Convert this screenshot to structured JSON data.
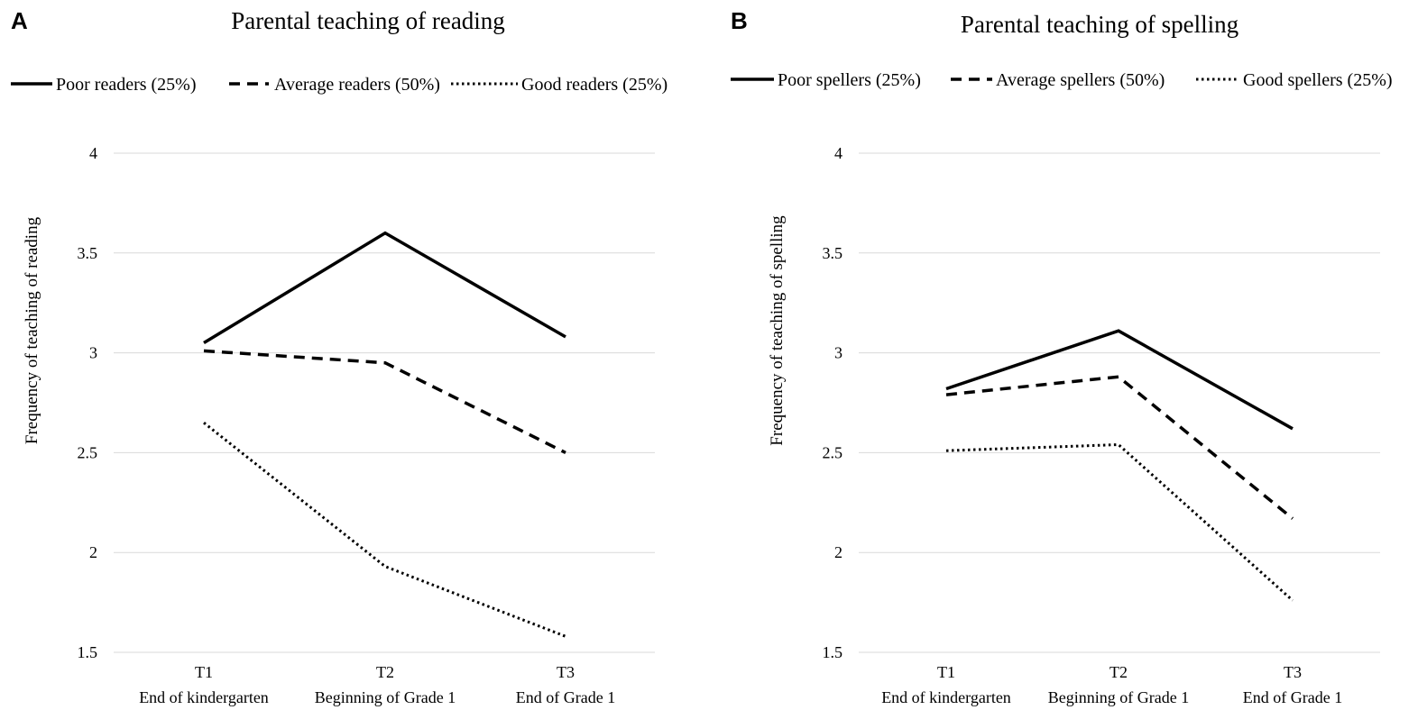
{
  "chart_data": [
    {
      "panel": "A",
      "type": "line",
      "title": "Parental teaching of reading",
      "ylabel": "Frequency of teaching of reading",
      "xlabel": "",
      "ylim": [
        1.5,
        4
      ],
      "yticks": [
        "1.5",
        "2",
        "2.5",
        "3",
        "3.5",
        "4"
      ],
      "grid": true,
      "legend_position": "top",
      "categories": [
        {
          "code": "T1",
          "label": "End of kindergarten"
        },
        {
          "code": "T2",
          "label": "Beginning of Grade 1"
        },
        {
          "code": "T3",
          "label": "End of Grade 1"
        }
      ],
      "series": [
        {
          "name": "Poor readers (25%)",
          "style": "solid",
          "values": [
            3.05,
            3.6,
            3.08
          ]
        },
        {
          "name": "Average readers (50%)",
          "style": "dashed",
          "values": [
            3.01,
            2.95,
            2.5
          ]
        },
        {
          "name": "Good readers (25%)",
          "style": "dotted",
          "values": [
            2.65,
            1.93,
            1.58
          ]
        }
      ]
    },
    {
      "panel": "B",
      "type": "line",
      "title": "Parental teaching of spelling",
      "ylabel": "Frequency of teaching of spelling",
      "xlabel": "",
      "ylim": [
        1.5,
        4
      ],
      "yticks": [
        "1.5",
        "2",
        "2.5",
        "3",
        "3.5",
        "4"
      ],
      "grid": true,
      "legend_position": "top",
      "categories": [
        {
          "code": "T1",
          "label": "End of kindergarten"
        },
        {
          "code": "T2",
          "label": "Beginning of Grade 1"
        },
        {
          "code": "T3",
          "label": "End of Grade 1"
        }
      ],
      "series": [
        {
          "name": "Poor spellers (25%)",
          "style": "solid",
          "values": [
            2.82,
            3.11,
            2.62
          ]
        },
        {
          "name": "Average spellers (50%)",
          "style": "dashed",
          "values": [
            2.79,
            2.88,
            2.17
          ]
        },
        {
          "name": "Good spellers (25%)",
          "style": "dotted",
          "values": [
            2.51,
            2.54,
            1.76
          ]
        }
      ]
    }
  ]
}
